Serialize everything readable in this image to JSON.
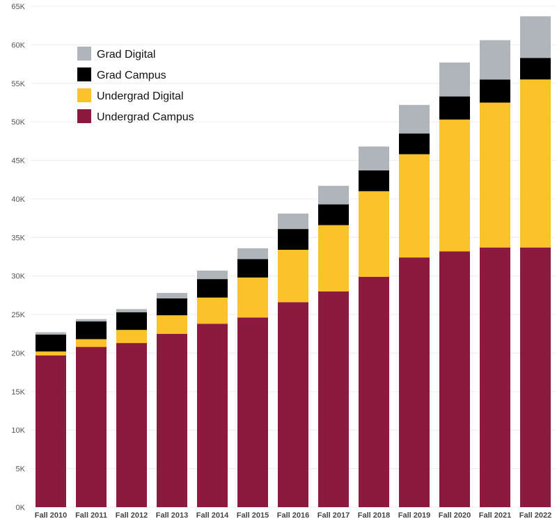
{
  "chart_data": {
    "type": "bar",
    "stacked": true,
    "title": "",
    "xlabel": "",
    "ylabel": "",
    "ylim": [
      0,
      65000
    ],
    "yticks": [
      0,
      5000,
      10000,
      15000,
      20000,
      25000,
      30000,
      35000,
      40000,
      45000,
      50000,
      55000,
      60000,
      65000
    ],
    "ytick_labels": [
      "0K",
      "5K",
      "10K",
      "15K",
      "20K",
      "25K",
      "30K",
      "35K",
      "40K",
      "45K",
      "50K",
      "55K",
      "60K",
      "65K"
    ],
    "grid": true,
    "legend_position": "top-left",
    "categories": [
      "Fall 2010",
      "Fall 2011",
      "Fall 2012",
      "Fall 2013",
      "Fall 2014",
      "Fall 2015",
      "Fall 2016",
      "Fall 2017",
      "Fall 2018",
      "Fall 2019",
      "Fall 2020",
      "Fall 2021",
      "Fall 2022"
    ],
    "series": [
      {
        "name": "Undergrad Campus",
        "color": "#8b1a3e",
        "values": [
          19700,
          20800,
          21300,
          22500,
          23800,
          24600,
          26600,
          28000,
          29900,
          32400,
          33200,
          33700,
          33700
        ]
      },
      {
        "name": "Undergrad Digital",
        "color": "#fcc22a",
        "values": [
          500,
          1000,
          1700,
          2400,
          3400,
          5200,
          6800,
          8600,
          11100,
          13400,
          17100,
          18800,
          21800
        ]
      },
      {
        "name": "Grad Campus",
        "color": "#000000",
        "values": [
          2200,
          2300,
          2300,
          2200,
          2400,
          2400,
          2700,
          2700,
          2700,
          2700,
          3000,
          3000,
          2800
        ]
      },
      {
        "name": "Grad Digital",
        "color": "#b0b4bb",
        "values": [
          300,
          300,
          400,
          700,
          1100,
          1400,
          2000,
          2400,
          3100,
          3700,
          4400,
          5100,
          5400
        ]
      }
    ],
    "legend_order": [
      "Grad Digital",
      "Grad Campus",
      "Undergrad Digital",
      "Undergrad Campus"
    ]
  }
}
